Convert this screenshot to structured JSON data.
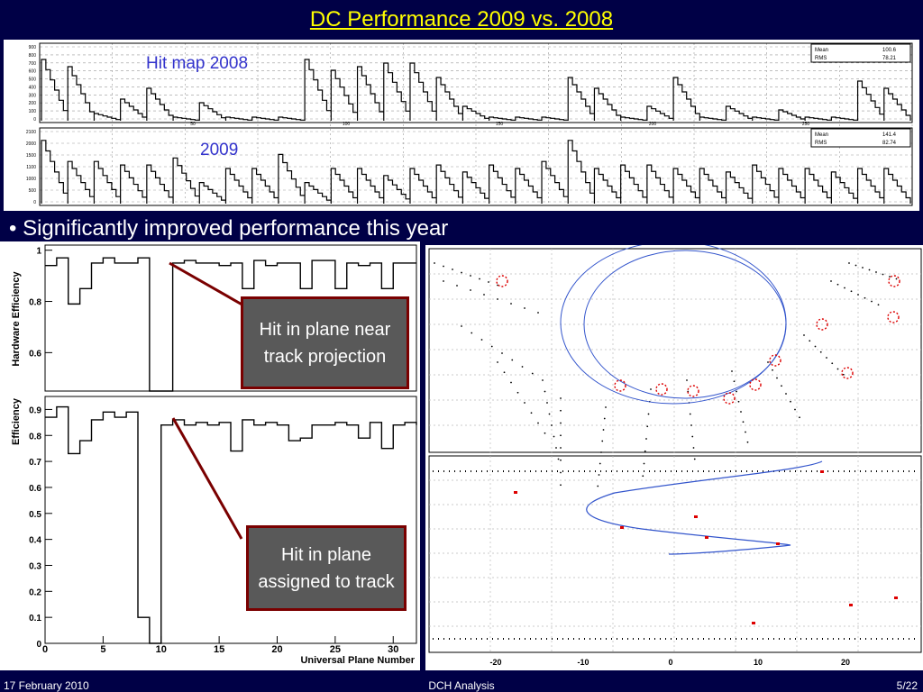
{
  "slide": {
    "title": "DC Performance 2009 vs. 2008",
    "bullet": "• Significantly improved performance this year"
  },
  "hitmap": {
    "label_2008": "Hit map 2008",
    "label_2009": "2009",
    "label_color": "#3333cc",
    "stats_2008": [
      [
        "Mean",
        "100.6"
      ],
      [
        "RMS",
        "78.21"
      ]
    ],
    "stats_2009": [
      [
        "Mean",
        "141.4"
      ],
      [
        "RMS",
        "82.74"
      ]
    ],
    "yticks_2008": [
      "900",
      "800",
      "700",
      "600",
      "500",
      "400",
      "300",
      "200",
      "100",
      "0"
    ],
    "yticks_2009": [
      "2100",
      "2000",
      "1500",
      "1100",
      "1000",
      "500",
      "0"
    ],
    "xticks": [
      "50",
      "100",
      "150",
      "200",
      "250"
    ]
  },
  "efficiency": {
    "top": {
      "ylabel": "Hardware Efficiency",
      "yticks": [
        "1",
        "0.8",
        "0.6"
      ]
    },
    "bottom": {
      "ylabel": "Efficiency",
      "yticks": [
        "0.9",
        "0.8",
        "0.7",
        "0.6",
        "0.5",
        "0.4",
        "0.3",
        "0.2",
        "0.1",
        "0"
      ]
    },
    "xticks": [
      "0",
      "5",
      "10",
      "15",
      "20",
      "25",
      "30"
    ],
    "xlabel": "Universal Plane Number"
  },
  "chart_data": [
    {
      "type": "line",
      "title": "",
      "xlabel": "Universal Plane Number",
      "ylabel": "Hardware Efficiency",
      "x": [
        0,
        1,
        2,
        3,
        4,
        5,
        6,
        7,
        8,
        9,
        10,
        11,
        12,
        13,
        14,
        15,
        16,
        17,
        18,
        19,
        20,
        21,
        22,
        23,
        24,
        25,
        26,
        27,
        28,
        29,
        30,
        31,
        32
      ],
      "values": [
        0.94,
        0.97,
        0.79,
        0.85,
        0.95,
        0.97,
        0.95,
        0.95,
        0.97,
        0,
        0,
        0.95,
        0.96,
        0.95,
        0.95,
        0.94,
        0.95,
        0.85,
        0.96,
        0.94,
        0.95,
        0.95,
        0.85,
        0.96,
        0.96,
        0.85,
        0.95,
        0.94,
        0.95,
        0.85,
        0.95,
        0.95,
        0.95
      ],
      "ylim": [
        0.45,
        1.02
      ],
      "xlim": [
        0,
        32
      ]
    },
    {
      "type": "line",
      "title": "",
      "xlabel": "Universal Plane Number",
      "ylabel": "Efficiency",
      "x": [
        0,
        1,
        2,
        3,
        4,
        5,
        6,
        7,
        8,
        9,
        10,
        11,
        12,
        13,
        14,
        15,
        16,
        17,
        18,
        19,
        20,
        21,
        22,
        23,
        24,
        25,
        26,
        27,
        28,
        29,
        30,
        31,
        32
      ],
      "values": [
        0.87,
        0.91,
        0.73,
        0.78,
        0.86,
        0.89,
        0.87,
        0.89,
        0.1,
        0,
        0.84,
        0.86,
        0.84,
        0.85,
        0.84,
        0.85,
        0.74,
        0.86,
        0.84,
        0.85,
        0.84,
        0.78,
        0.79,
        0.84,
        0.84,
        0.85,
        0.84,
        0.79,
        0.85,
        0.75,
        0.84,
        0.85,
        0.84
      ],
      "ylim": [
        0,
        0.95
      ],
      "xlim": [
        0,
        32
      ]
    }
  ],
  "event_display": {
    "xticks": [
      "-20",
      "-10",
      "0",
      "10",
      "20"
    ]
  },
  "callouts": {
    "top": "Hit in plane near track projection",
    "bottom": "Hit in plane assigned to track"
  },
  "footer": {
    "date": "17 February 2010",
    "center": "DCH Analysis",
    "page": "5/22"
  },
  "colors": {
    "background": "#000046",
    "title": "#ffff00",
    "callout_fill": "#595959",
    "callout_border": "#7a0000",
    "track": "#3355cc",
    "hit_red": "#dd0000"
  }
}
